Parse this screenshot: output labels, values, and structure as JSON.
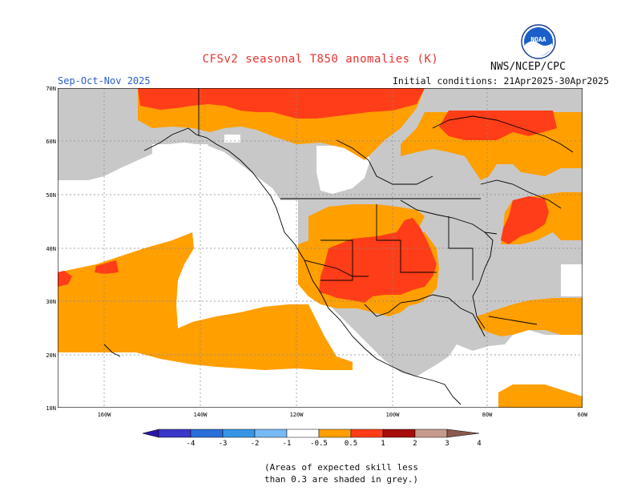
{
  "title": "CFSv2 seasonal T850 anomalies (K)",
  "agency": "NWS/NCEP/CPC",
  "season": "Sep-Oct-Nov 2025",
  "initial_conditions": "Initial conditions: 21Apr2025-30Apr2025",
  "note": {
    "line1": "(Areas of expected skill less",
    "line2": "than 0.3 are shaded in grey.)"
  },
  "logo": {
    "text": "NOAA",
    "icon": "noaa-logo"
  },
  "map": {
    "lat_labels": [
      "70N",
      "60N",
      "50N",
      "40N",
      "30N",
      "20N",
      "10N"
    ],
    "lon_labels": [
      "160W",
      "140W",
      "120W",
      "100W",
      "80W",
      "60W"
    ],
    "colors": {
      "skill_grey": "#c8c8c8",
      "orange": "#ff9f00",
      "red_orange": "#ff3d18",
      "land_line": "#000000"
    }
  },
  "colorbar": {
    "tick_labels": [
      "-4",
      "-3",
      "-2",
      "-1",
      "-0.5",
      "0.5",
      "1",
      "2",
      "3",
      "4"
    ],
    "colors": [
      "#2a16a6",
      "#3b37c8",
      "#2a6fd8",
      "#3795e6",
      "#77b9f4",
      "#ffffff",
      "#ff9f00",
      "#ff3d18",
      "#a50c0a",
      "#c79a8e",
      "#8a5a4e"
    ]
  }
}
